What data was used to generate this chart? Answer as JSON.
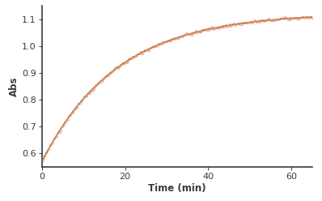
{
  "xlabel": "Time (min)",
  "ylabel": "Abs",
  "xlim": [
    0,
    65
  ],
  "ylim": [
    0.55,
    1.15
  ],
  "yticks": [
    0.6,
    0.7,
    0.8,
    0.9,
    1.0,
    1.1
  ],
  "xticks": [
    0,
    20,
    40,
    60
  ],
  "data_color": "#e08060",
  "fit_color": "#9B7520",
  "A0": 0.57,
  "A_inf": 1.125,
  "k": 0.055,
  "noise_std": 0.0025,
  "n_points": 200,
  "t_max": 65.0,
  "background_color": "#ffffff",
  "spine_color": "#3a3a3a",
  "tick_color": "#3a3a3a",
  "label_color": "#3a3a3a",
  "xlabel_fontsize": 8.5,
  "ylabel_fontsize": 8.5,
  "tick_fontsize": 8,
  "marker_size": 1.5,
  "fit_linewidth": 1.0
}
